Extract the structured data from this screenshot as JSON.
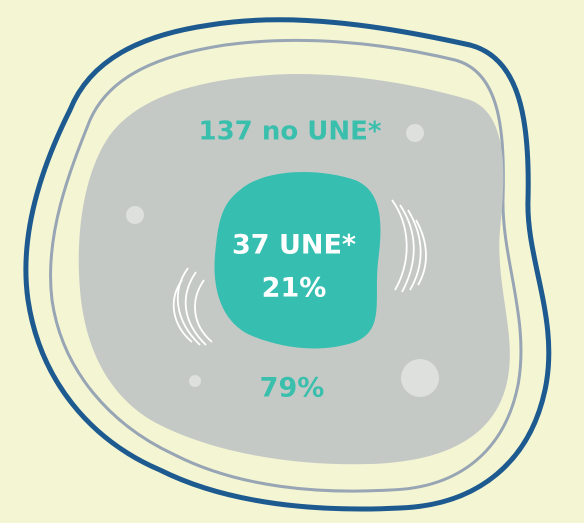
{
  "outer": {
    "label": "137 no UNE*",
    "share": "79%"
  },
  "inner": {
    "label": "37 UNE*",
    "share": "21%"
  }
}
